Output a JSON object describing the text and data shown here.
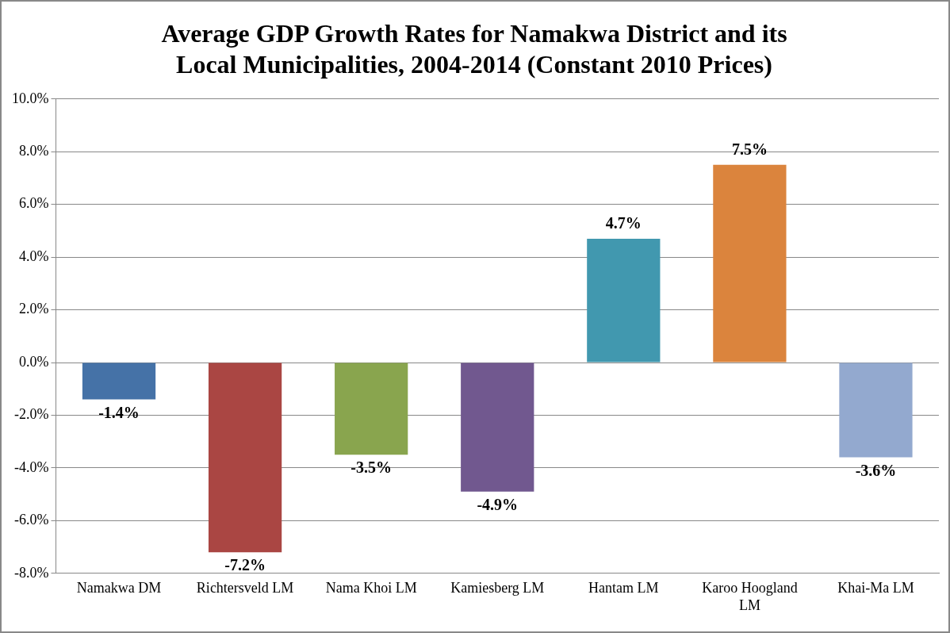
{
  "chart_data": {
    "type": "bar",
    "title": "Average GDP Growth Rates for Namakwa District and its Local Municipalities, 2004-2014 (Constant 2010 Prices)",
    "categories": [
      "Namakwa DM",
      "Richtersveld LM",
      "Nama Khoi LM",
      "Kamiesberg LM",
      "Hantam LM",
      "Karoo Hoogland LM",
      "Khai-Ma LM"
    ],
    "values": [
      -1.4,
      -7.2,
      -3.5,
      -4.9,
      4.7,
      7.5,
      -3.6
    ],
    "colors": [
      "#4572a7",
      "#aa4643",
      "#89a54e",
      "#71588f",
      "#4198af",
      "#db843d",
      "#93a9cf"
    ],
    "value_labels": [
      "-1.4%",
      "-7.2%",
      "-3.5%",
      "-4.9%",
      "4.7%",
      "7.5%",
      "-3.6%"
    ],
    "ylim": [
      -8,
      10
    ],
    "yticks": [
      {
        "value": -8,
        "label": "-8.0%"
      },
      {
        "value": -6,
        "label": "-6.0%"
      },
      {
        "value": -4,
        "label": "-4.0%"
      },
      {
        "value": -2,
        "label": "-2.0%"
      },
      {
        "value": 0,
        "label": "0.0%"
      },
      {
        "value": 2,
        "label": "2.0%"
      },
      {
        "value": 4,
        "label": "4.0%"
      },
      {
        "value": 6,
        "label": "6.0%"
      },
      {
        "value": 8,
        "label": "8.0%"
      },
      {
        "value": 10,
        "label": "10.0%"
      }
    ],
    "grid": "y",
    "legend": false
  }
}
